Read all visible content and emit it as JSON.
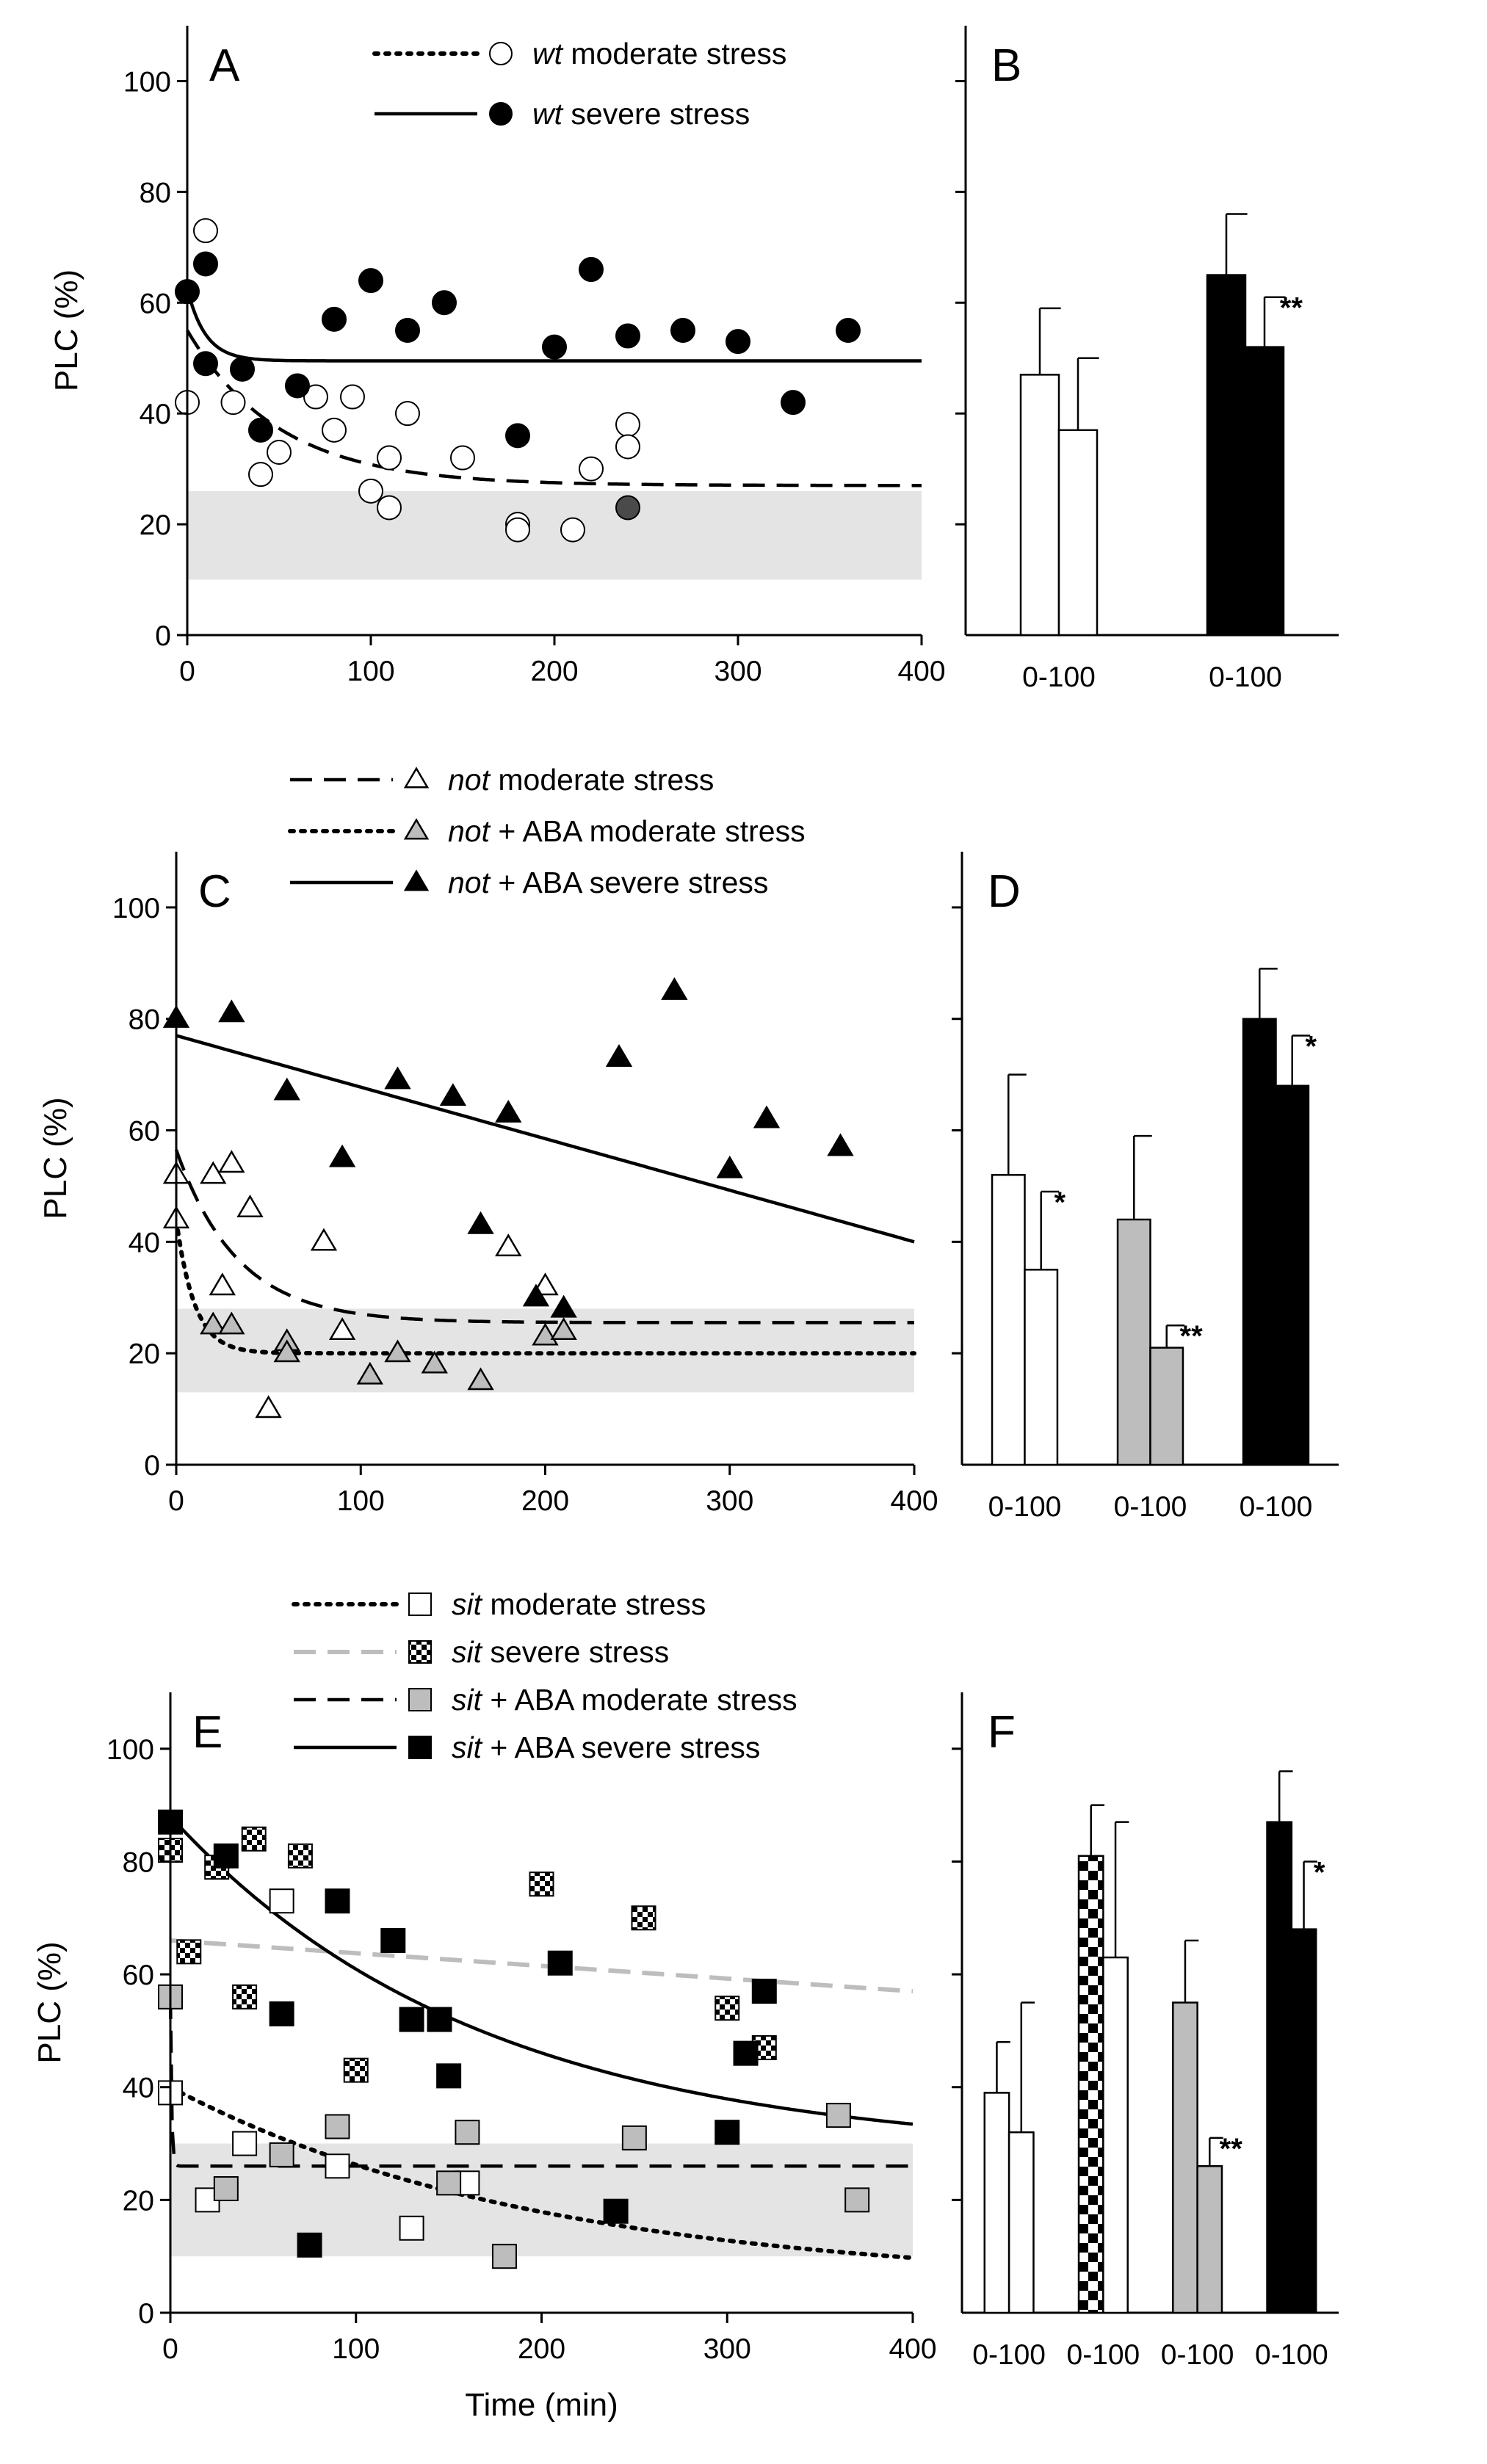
{
  "colors": {
    "black": "#000000",
    "white": "#ffffff",
    "grey": "#bdbdbd",
    "band": "#e4e4e4",
    "dash_grey": "#bdbdbd"
  },
  "y_axis_label": "PLC (%)",
  "x_axis_label": "Time (min)",
  "chart_data": [
    {
      "id": "A",
      "type": "scatter",
      "letter": "A",
      "xlim": [
        0,
        400
      ],
      "ylim": [
        0,
        110
      ],
      "xticks": [
        "0",
        "100",
        "200",
        "300",
        "400"
      ],
      "yticks": [
        "0",
        "20",
        "40",
        "60",
        "80",
        "100"
      ],
      "ylabel": "PLC (%)",
      "xlabel": "",
      "band": [
        10,
        26
      ],
      "legend": [
        {
          "line": "dot",
          "marker": "circle-open",
          "italic": "wt",
          "text": " moderate stress"
        },
        {
          "line": "solid",
          "marker": "circle-filled",
          "italic": "wt",
          "text": " severe stress"
        }
      ],
      "series": [
        {
          "marker": "circle-open",
          "points": [
            [
              0,
              42
            ],
            [
              10,
              73
            ],
            [
              25,
              42
            ],
            [
              40,
              29
            ],
            [
              50,
              33
            ],
            [
              70,
              43
            ],
            [
              80,
              37
            ],
            [
              90,
              43
            ],
            [
              100,
              26
            ],
            [
              110,
              32
            ],
            [
              110,
              23
            ],
            [
              120,
              40
            ],
            [
              150,
              32
            ],
            [
              180,
              20
            ],
            [
              180,
              19
            ],
            [
              210,
              19
            ],
            [
              220,
              30
            ],
            [
              240,
              38
            ],
            [
              240,
              34
            ]
          ]
        },
        {
          "marker": "circle-filled",
          "points": [
            [
              0,
              62
            ],
            [
              10,
              67
            ],
            [
              10,
              49
            ],
            [
              30,
              48
            ],
            [
              40,
              37
            ],
            [
              60,
              45
            ],
            [
              80,
              57
            ],
            [
              100,
              64
            ],
            [
              120,
              55
            ],
            [
              140,
              60
            ],
            [
              180,
              36
            ],
            [
              200,
              52
            ],
            [
              220,
              66
            ],
            [
              240,
              54
            ],
            [
              270,
              55
            ],
            [
              300,
              53
            ],
            [
              330,
              42
            ],
            [
              360,
              55
            ]
          ]
        },
        {
          "marker": "circle-darkgrey",
          "points": [
            [
              240,
              23
            ]
          ]
        }
      ],
      "curves": [
        {
          "style": "dash",
          "fn": "exp",
          "a": 27,
          "b": 28,
          "k": 0.02
        },
        {
          "style": "solid",
          "fn": "exp",
          "a": 49.5,
          "b": 13,
          "k": 0.1
        }
      ]
    },
    {
      "id": "B",
      "type": "bar",
      "letter": "B",
      "ylim": [
        0,
        110
      ],
      "groups": [
        {
          "label": "0-100",
          "bars": [
            {
              "value": 47,
              "err": 12,
              "fill": "white"
            },
            {
              "value": 37,
              "err": 13,
              "fill": "white",
              "sig": ""
            }
          ]
        },
        {
          "label": "0-100",
          "bars": [
            {
              "value": 65,
              "err": 11,
              "fill": "black"
            },
            {
              "value": 52,
              "err": 9,
              "fill": "black",
              "sig": "**"
            }
          ]
        }
      ]
    },
    {
      "id": "C",
      "type": "scatter",
      "letter": "C",
      "xlim": [
        0,
        400
      ],
      "ylim": [
        0,
        110
      ],
      "xticks": [
        "0",
        "100",
        "200",
        "300",
        "400"
      ],
      "yticks": [
        "0",
        "20",
        "40",
        "60",
        "80",
        "100"
      ],
      "ylabel": "PLC (%)",
      "xlabel": "",
      "band": [
        13,
        28
      ],
      "legend": [
        {
          "line": "dash",
          "marker": "tri-open",
          "italic": "not",
          "text": "  moderate stress"
        },
        {
          "line": "dot",
          "marker": "tri-grey",
          "italic": "not",
          "text": " + ABA moderate stress"
        },
        {
          "line": "solid",
          "marker": "tri-filled",
          "italic": "not",
          "text": " + ABA severe stress"
        }
      ],
      "series": [
        {
          "marker": "tri-open",
          "points": [
            [
              0,
              52
            ],
            [
              0,
              44
            ],
            [
              20,
              52
            ],
            [
              25,
              32
            ],
            [
              30,
              54
            ],
            [
              40,
              46
            ],
            [
              80,
              40
            ],
            [
              90,
              24
            ],
            [
              180,
              39
            ],
            [
              200,
              32
            ],
            [
              50,
              10
            ]
          ]
        },
        {
          "marker": "tri-grey",
          "points": [
            [
              20,
              25
            ],
            [
              30,
              25
            ],
            [
              60,
              22
            ],
            [
              60,
              20
            ],
            [
              105,
              16
            ],
            [
              120,
              20
            ],
            [
              140,
              18
            ],
            [
              165,
              15
            ],
            [
              200,
              23
            ],
            [
              210,
              24
            ]
          ]
        },
        {
          "marker": "tri-filled",
          "points": [
            [
              0,
              80
            ],
            [
              30,
              81
            ],
            [
              60,
              67
            ],
            [
              90,
              55
            ],
            [
              120,
              69
            ],
            [
              150,
              66
            ],
            [
              165,
              43
            ],
            [
              180,
              63
            ],
            [
              195,
              30
            ],
            [
              210,
              28
            ],
            [
              240,
              73
            ],
            [
              270,
              85
            ],
            [
              300,
              53
            ],
            [
              320,
              62
            ],
            [
              360,
              57
            ]
          ]
        }
      ],
      "curves": [
        {
          "style": "dash",
          "fn": "exp",
          "a": 25.5,
          "b": 31,
          "k": 0.03
        },
        {
          "style": "dot",
          "fn": "exp",
          "a": 20,
          "b": 24,
          "k": 0.1
        },
        {
          "style": "solid",
          "fn": "lin",
          "a": 77,
          "b": -0.0925
        }
      ]
    },
    {
      "id": "D",
      "type": "bar",
      "letter": "D",
      "ylim": [
        0,
        110
      ],
      "groups": [
        {
          "label": "0-100",
          "bars": [
            {
              "value": 52,
              "err": 18,
              "fill": "white"
            },
            {
              "value": 35,
              "err": 14,
              "fill": "white",
              "sig": "*"
            }
          ]
        },
        {
          "label": "0-100",
          "bars": [
            {
              "value": 44,
              "err": 15,
              "fill": "grey"
            },
            {
              "value": 21,
              "err": 4,
              "fill": "grey",
              "sig": "**"
            }
          ]
        },
        {
          "label": "0-100",
          "bars": [
            {
              "value": 80,
              "err": 9,
              "fill": "black"
            },
            {
              "value": 68,
              "err": 9,
              "fill": "black",
              "sig": "*"
            }
          ]
        }
      ]
    },
    {
      "id": "E",
      "type": "scatter",
      "letter": "E",
      "xlim": [
        0,
        400
      ],
      "ylim": [
        0,
        110
      ],
      "xticks": [
        "0",
        "100",
        "200",
        "300",
        "400"
      ],
      "yticks": [
        "0",
        "20",
        "40",
        "60",
        "80",
        "100"
      ],
      "ylabel": "PLC (%)",
      "xlabel": "Time (min)",
      "band": [
        10,
        30
      ],
      "legend": [
        {
          "line": "dot",
          "marker": "sq-open",
          "italic": "sit",
          "text": " moderate stress"
        },
        {
          "line": "greydash",
          "marker": "sq-check",
          "italic": "sit",
          "text": " severe stress"
        },
        {
          "line": "dash",
          "marker": "sq-grey",
          "italic": "sit",
          "text": " + ABA moderate stress"
        },
        {
          "line": "solid",
          "marker": "sq-filled",
          "italic": "sit",
          "text": " + ABA severe stress"
        }
      ],
      "series": [
        {
          "marker": "sq-open",
          "points": [
            [
              0,
              39
            ],
            [
              20,
              20
            ],
            [
              40,
              30
            ],
            [
              60,
              73
            ],
            [
              90,
              26
            ],
            [
              130,
              15
            ],
            [
              160,
              23
            ]
          ]
        },
        {
          "marker": "sq-check",
          "points": [
            [
              0,
              82
            ],
            [
              10,
              64
            ],
            [
              25,
              79
            ],
            [
              40,
              56
            ],
            [
              45,
              84
            ],
            [
              70,
              81
            ],
            [
              100,
              43
            ],
            [
              200,
              76
            ],
            [
              255,
              70
            ],
            [
              300,
              54
            ],
            [
              320,
              47
            ]
          ]
        },
        {
          "marker": "sq-grey",
          "points": [
            [
              0,
              56
            ],
            [
              30,
              22
            ],
            [
              60,
              28
            ],
            [
              90,
              33
            ],
            [
              150,
              23
            ],
            [
              160,
              32
            ],
            [
              180,
              10
            ],
            [
              250,
              31
            ],
            [
              360,
              35
            ],
            [
              370,
              20
            ]
          ]
        },
        {
          "marker": "sq-filled",
          "points": [
            [
              0,
              87
            ],
            [
              30,
              81
            ],
            [
              60,
              53
            ],
            [
              75,
              12
            ],
            [
              90,
              73
            ],
            [
              120,
              66
            ],
            [
              130,
              52
            ],
            [
              145,
              52
            ],
            [
              150,
              42
            ],
            [
              210,
              62
            ],
            [
              240,
              18
            ],
            [
              300,
              32
            ],
            [
              310,
              46
            ],
            [
              320,
              57
            ]
          ]
        }
      ],
      "curves": [
        {
          "style": "dot",
          "fn": "exp",
          "a": 5,
          "b": 35,
          "k": 0.005
        },
        {
          "style": "greydash",
          "fn": "lin",
          "a": 66,
          "b": -0.0225
        },
        {
          "style": "dash",
          "fn": "exp",
          "a": 26,
          "b": 30,
          "k": 1.5
        },
        {
          "style": "solid",
          "fn": "exp",
          "a": 28,
          "b": 60,
          "k": 0.006
        }
      ]
    },
    {
      "id": "F",
      "type": "bar",
      "letter": "F",
      "ylim": [
        0,
        110
      ],
      "groups": [
        {
          "label": "0-100",
          "bars": [
            {
              "value": 39,
              "err": 9,
              "fill": "white"
            },
            {
              "value": 32,
              "err": 23,
              "fill": "white",
              "sig": ""
            }
          ]
        },
        {
          "label": "0-100",
          "bars": [
            {
              "value": 81,
              "err": 9,
              "fill": "check"
            },
            {
              "value": 63,
              "err": 24,
              "fill": "white",
              "sig": ""
            }
          ]
        },
        {
          "label": "0-100",
          "bars": [
            {
              "value": 55,
              "err": 11,
              "fill": "grey"
            },
            {
              "value": 26,
              "err": 5,
              "fill": "grey",
              "sig": "**"
            }
          ]
        },
        {
          "label": "0-100",
          "bars": [
            {
              "value": 87,
              "err": 9,
              "fill": "black"
            },
            {
              "value": 68,
              "err": 12,
              "fill": "black",
              "sig": "*"
            }
          ]
        }
      ]
    }
  ]
}
